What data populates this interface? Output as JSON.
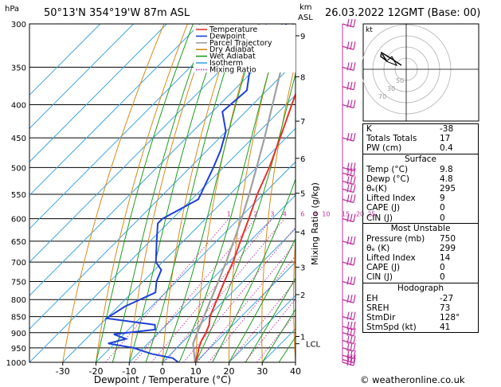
{
  "header": {
    "location": "50°13'N  354°19'W  87m  ASL",
    "datetime": "26.03.2022  12GMT  (Base: 00)",
    "hpa_label": "hPa",
    "km_label": "km",
    "asl_label": "ASL"
  },
  "footer": {
    "credit": "© weatheronline.co.uk"
  },
  "hodograph": {
    "kt_label": "kt",
    "ring_labels": [
      "50",
      "30",
      "70"
    ]
  },
  "chart_data": {
    "type": "skew-t log-p",
    "xlabel": "Dewpoint / Temperature (°C)",
    "ylabel_right": "Mixing Ratio (g/kg)",
    "pressure_levels": [
      300,
      350,
      400,
      450,
      500,
      550,
      600,
      650,
      700,
      750,
      800,
      850,
      900,
      950,
      1000
    ],
    "pressure_range": [
      1000,
      300
    ],
    "temperature_range_at_1000hPa": [
      -40,
      40
    ],
    "temperature_ticks": [
      -30,
      -20,
      -10,
      0,
      10,
      20,
      30,
      40
    ],
    "km_ticks": [
      {
        "label": "9",
        "p": 313
      },
      {
        "label": "8",
        "p": 362
      },
      {
        "label": "7",
        "p": 424
      },
      {
        "label": "6",
        "p": 484
      },
      {
        "label": "5",
        "p": 548
      },
      {
        "label": "4",
        "p": 629
      },
      {
        "label": "3",
        "p": 713
      },
      {
        "label": "2",
        "p": 786
      },
      {
        "label": "1",
        "p": 912
      },
      {
        "label": "LCL",
        "p": 936
      }
    ],
    "mixing_ratio_labels": [
      {
        "label": "1",
        "w": 1
      },
      {
        "label": "2",
        "w": 2
      },
      {
        "label": "3",
        "w": 3
      },
      {
        "label": "4",
        "w": 4
      },
      {
        "label": "6",
        "w": 6
      },
      {
        "label": "8",
        "w": 8
      },
      {
        "label": "10",
        "w": 10
      },
      {
        "label": "15",
        "w": 15
      },
      {
        "label": "20",
        "w": 20
      },
      {
        "label": "25",
        "w": 25
      }
    ],
    "legend": [
      {
        "name": "Temperature",
        "color": "#e8322a",
        "dash": false
      },
      {
        "name": "Dewpoint",
        "color": "#1f3fd6",
        "dash": false
      },
      {
        "name": "Parcel Trajectory",
        "color": "#a0a0a0",
        "dash": false
      },
      {
        "name": "Dry Adiabat",
        "color": "#d98a1a",
        "dash": false
      },
      {
        "name": "Wet Adiabat",
        "color": "#1e9e1e",
        "dash": false
      },
      {
        "name": "Isotherm",
        "color": "#3ea5e0",
        "dash": false
      },
      {
        "name": "Mixing Ratio",
        "color": "#c0309c",
        "dash": true
      }
    ],
    "temperature": [
      {
        "p": 1000,
        "t": 9.8
      },
      {
        "p": 975,
        "t": 8.4
      },
      {
        "p": 950,
        "t": 6.6
      },
      {
        "p": 925,
        "t": 5.2
      },
      {
        "p": 900,
        "t": 4.2
      },
      {
        "p": 875,
        "t": 2.8
      },
      {
        "p": 850,
        "t": 0.6
      },
      {
        "p": 800,
        "t": -2.4
      },
      {
        "p": 750,
        "t": -5.6
      },
      {
        "p": 700,
        "t": -8.8
      },
      {
        "p": 650,
        "t": -12.8
      },
      {
        "p": 600,
        "t": -17.0
      },
      {
        "p": 550,
        "t": -21.8
      },
      {
        "p": 500,
        "t": -26.2
      },
      {
        "p": 450,
        "t": -31.8
      },
      {
        "p": 400,
        "t": -38.2
      },
      {
        "p": 350,
        "t": -45.4
      },
      {
        "p": 300,
        "t": -53.4
      }
    ],
    "dewpoint": [
      {
        "p": 1000,
        "t": 4.8
      },
      {
        "p": 985,
        "t": 1.8
      },
      {
        "p": 970,
        "t": -6.0
      },
      {
        "p": 950,
        "t": -13.0
      },
      {
        "p": 935,
        "t": -22.0
      },
      {
        "p": 920,
        "t": -18.0
      },
      {
        "p": 905,
        "t": -23.0
      },
      {
        "p": 890,
        "t": -12.0
      },
      {
        "p": 875,
        "t": -13.5
      },
      {
        "p": 855,
        "t": -30.0
      },
      {
        "p": 820,
        "t": -28.0
      },
      {
        "p": 780,
        "t": -23.0
      },
      {
        "p": 750,
        "t": -26.0
      },
      {
        "p": 720,
        "t": -28.0
      },
      {
        "p": 700,
        "t": -32.0
      },
      {
        "p": 650,
        "t": -38.0
      },
      {
        "p": 610,
        "t": -43.0
      },
      {
        "p": 600,
        "t": -43.0
      },
      {
        "p": 560,
        "t": -38.0
      },
      {
        "p": 500,
        "t": -43.0
      },
      {
        "p": 470,
        "t": -46.0
      },
      {
        "p": 440,
        "t": -50.0
      },
      {
        "p": 410,
        "t": -57.0
      },
      {
        "p": 380,
        "t": -56.0
      },
      {
        "p": 345,
        "t": -63.0
      },
      {
        "p": 320,
        "t": -64.0
      },
      {
        "p": 300,
        "t": -64.0
      }
    ],
    "parcel": [
      {
        "p": 1000,
        "t": 9.8
      },
      {
        "p": 936,
        "t": 3.6
      },
      {
        "p": 900,
        "t": 1.6
      },
      {
        "p": 850,
        "t": -1.2
      },
      {
        "p": 800,
        "t": -4.2
      },
      {
        "p": 750,
        "t": -7.4
      },
      {
        "p": 700,
        "t": -10.9
      },
      {
        "p": 650,
        "t": -14.8
      },
      {
        "p": 600,
        "t": -19.2
      },
      {
        "p": 550,
        "t": -24.2
      },
      {
        "p": 500,
        "t": -30.0
      },
      {
        "p": 450,
        "t": -36.5
      },
      {
        "p": 400,
        "t": -44.0
      },
      {
        "p": 350,
        "t": -52.5
      },
      {
        "p": 300,
        "t": -62.0
      }
    ],
    "wind_barbs_pressure": [
      300,
      325,
      350,
      375,
      400,
      450,
      500,
      510,
      525,
      540,
      560,
      600,
      650,
      700,
      750,
      800,
      850,
      880,
      900,
      925,
      950,
      975,
      990,
      1000
    ]
  },
  "indices": {
    "general": [
      {
        "label": "K",
        "value": "-38"
      },
      {
        "label": "Totals Totals",
        "value": "17"
      },
      {
        "label": "PW (cm)",
        "value": "0.4"
      }
    ],
    "surface_title": "Surface",
    "surface": [
      {
        "label": "Temp (°C)",
        "value": "9.8"
      },
      {
        "label": "Dewp (°C)",
        "value": "4.8"
      },
      {
        "label": "θₑ(K)",
        "value": "295"
      },
      {
        "label": "Lifted Index",
        "value": "9"
      },
      {
        "label": "CAPE (J)",
        "value": "0"
      },
      {
        "label": "CIN (J)",
        "value": "0"
      }
    ],
    "most_unstable_title": "Most Unstable",
    "most_unstable": [
      {
        "label": "Pressure (mb)",
        "value": "750"
      },
      {
        "label": "θₑ (K)",
        "value": "299"
      },
      {
        "label": "Lifted Index",
        "value": "14"
      },
      {
        "label": "CAPE (J)",
        "value": "0"
      },
      {
        "label": "CIN (J)",
        "value": "0"
      }
    ],
    "hodograph_title": "Hodograph",
    "hodograph": [
      {
        "label": "EH",
        "value": "-27"
      },
      {
        "label": "SREH",
        "value": "73"
      },
      {
        "label": "StmDir",
        "value": "128°"
      },
      {
        "label": "StmSpd (kt)",
        "value": "41"
      }
    ]
  }
}
